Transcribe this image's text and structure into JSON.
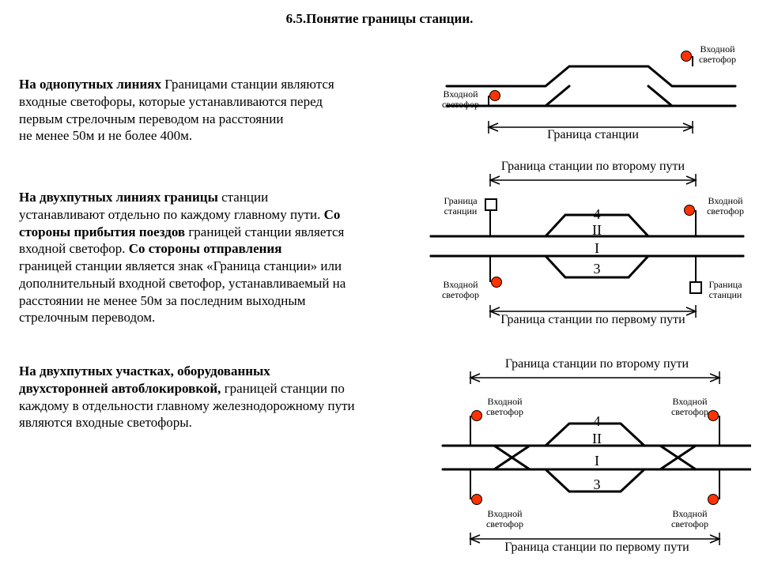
{
  "title": "6.5.Понятие границы станции.",
  "para1": {
    "b": "На однопутных линиях ",
    "t": "Границами станции  являются входные светофоры, которые устанавливаются перед первым стрелочным переводом на расстоянии",
    "t2": " не менее 50м и не более 400м."
  },
  "para2": {
    "b": "На двухпутных линиях границы ",
    "t": "станции устанавливают отдельно по каждому главному пути. ",
    "b2": "Со стороны прибытия поездов ",
    "t2": "границей станции является входной светофор. ",
    "b3": "Со стороны отправления",
    "t3": " границей станции является знак «Граница станции» или дополнительный  входной  светофор, устанавливаемый   на расстоянии не менее 50м за последним выходным стрелочным переводом."
  },
  "para3": {
    "b": "На двухпутных участках, оборудованных двухсторонней автоблокировкой,  ",
    "t": "границей станции по каждому в отдельности главному железнодорожному пути являются входные светофоры."
  },
  "labels": {
    "entry": "Входной\nсветофор",
    "boundary_sign": "Граница\nстанции",
    "station_boundary": "Граница станции",
    "boundary_path1": "Граница станции по первому пути",
    "boundary_path2": "Граница станции по второму пути",
    "num_I": "I",
    "num_II": "II",
    "num_3": "3",
    "num_4": "4"
  },
  "style": {
    "track_color": "#000000",
    "track_width": 3,
    "signal_red": "#ff3300",
    "signal_radius": 6.5,
    "arrow_color": "#000000",
    "font_title_pt": 17,
    "font_body_pt": 17,
    "font_label_pt": 12,
    "font_caption_pt": 16,
    "bg": "#ffffff"
  }
}
